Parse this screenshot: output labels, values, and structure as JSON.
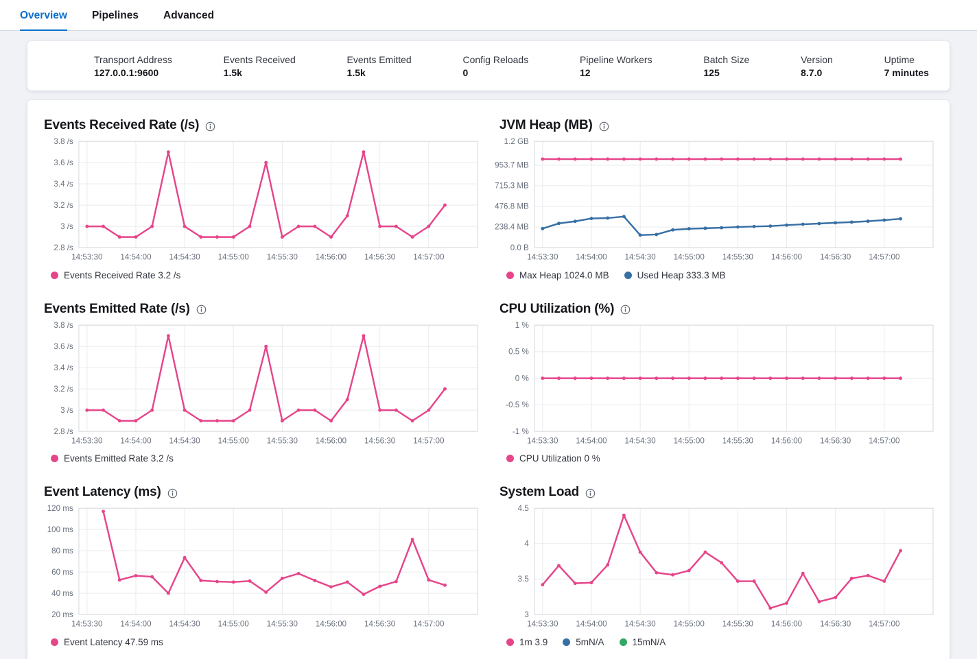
{
  "tabs": [
    {
      "label": "Overview",
      "active": true
    },
    {
      "label": "Pipelines",
      "active": false
    },
    {
      "label": "Advanced",
      "active": false
    }
  ],
  "stats": {
    "items": [
      {
        "label": "Transport Address",
        "value": "127.0.0.1:9600"
      },
      {
        "label": "Events Received",
        "value": "1.5k"
      },
      {
        "label": "Events Emitted",
        "value": "1.5k"
      },
      {
        "label": "Config Reloads",
        "value": "0"
      },
      {
        "label": "Pipeline Workers",
        "value": "12"
      },
      {
        "label": "Batch Size",
        "value": "125"
      },
      {
        "label": "Version",
        "value": "8.7.0"
      },
      {
        "label": "Uptime",
        "value": "7 minutes"
      }
    ]
  },
  "colors": {
    "tab_active": "#0b6fcb",
    "pink": "#e6458a",
    "blue": "#386fa4",
    "green": "#31a863"
  },
  "chart_data": [
    {
      "type": "line",
      "title": "Events Received Rate (/s)",
      "x": [
        "14:53:30",
        "14:53:40",
        "14:53:50",
        "14:54:00",
        "14:54:10",
        "14:54:20",
        "14:54:30",
        "14:54:40",
        "14:54:50",
        "14:55:00",
        "14:55:10",
        "14:55:20",
        "14:55:30",
        "14:55:40",
        "14:55:50",
        "14:56:00",
        "14:56:10",
        "14:56:20",
        "14:56:30",
        "14:56:40",
        "14:56:50",
        "14:57:00",
        "14:57:10"
      ],
      "x_tick_labels": [
        "14:53:30",
        "14:54:00",
        "14:54:30",
        "14:55:00",
        "14:55:30",
        "14:56:00",
        "14:56:30",
        "14:57:00"
      ],
      "ylim": [
        2.8,
        3.8
      ],
      "y_ticks": [
        {
          "label": "3.8 /s",
          "value": 3.8
        },
        {
          "label": "3.6 /s",
          "value": 3.6
        },
        {
          "label": "3.4 /s",
          "value": 3.4
        },
        {
          "label": "3.2 /s",
          "value": 3.2
        },
        {
          "label": "3 /s",
          "value": 3.0
        },
        {
          "label": "2.8 /s",
          "value": 2.8
        }
      ],
      "series": [
        {
          "name": "Events Received Rate",
          "color": "#e6458a",
          "values": [
            3,
            3,
            2.9,
            2.9,
            3,
            3.7,
            3,
            2.9,
            2.9,
            2.9,
            3,
            3.6,
            2.9,
            3,
            3,
            2.9,
            3.1,
            3.7,
            3,
            3,
            2.9,
            3,
            3.2
          ]
        }
      ],
      "legend": [
        {
          "text": "Events Received Rate 3.2 /s",
          "color": "#e6458a"
        }
      ]
    },
    {
      "type": "line",
      "title": "JVM Heap (MB)",
      "x": [
        "14:53:30",
        "14:53:40",
        "14:53:50",
        "14:54:00",
        "14:54:10",
        "14:54:20",
        "14:54:30",
        "14:54:40",
        "14:54:50",
        "14:55:00",
        "14:55:10",
        "14:55:20",
        "14:55:30",
        "14:55:40",
        "14:55:50",
        "14:56:00",
        "14:56:10",
        "14:56:20",
        "14:56:30",
        "14:56:40",
        "14:56:50",
        "14:57:00",
        "14:57:10"
      ],
      "x_tick_labels": [
        "14:53:30",
        "14:54:00",
        "14:54:30",
        "14:55:00",
        "14:55:30",
        "14:56:00",
        "14:56:30",
        "14:57:00"
      ],
      "ylim": [
        0,
        1228.8
      ],
      "y_ticks": [
        {
          "label": "1.2 GB",
          "value": 1228.8
        },
        {
          "label": "953.7 MB",
          "value": 953.7
        },
        {
          "label": "715.3 MB",
          "value": 715.3
        },
        {
          "label": "476.8 MB",
          "value": 476.8
        },
        {
          "label": "238.4 MB",
          "value": 238.4
        },
        {
          "label": "0.0 B",
          "value": 0
        }
      ],
      "series": [
        {
          "name": "Max Heap",
          "color": "#e6458a",
          "values": [
            1024,
            1024,
            1024,
            1024,
            1024,
            1024,
            1024,
            1024,
            1024,
            1024,
            1024,
            1024,
            1024,
            1024,
            1024,
            1024,
            1024,
            1024,
            1024,
            1024,
            1024,
            1024,
            1024
          ]
        },
        {
          "name": "Used Heap",
          "color": "#386fa4",
          "values": [
            220,
            280,
            304,
            337,
            342,
            359,
            145,
            152,
            205,
            218,
            224,
            230,
            238,
            244,
            249,
            260,
            270,
            278,
            287,
            295,
            305,
            318,
            333.3
          ]
        }
      ],
      "legend": [
        {
          "text": "Max Heap 1024.0 MB",
          "color": "#e6458a"
        },
        {
          "text": "Used Heap 333.3 MB",
          "color": "#386fa4"
        }
      ]
    },
    {
      "type": "line",
      "title": "Events Emitted Rate (/s)",
      "x": [
        "14:53:30",
        "14:53:40",
        "14:53:50",
        "14:54:00",
        "14:54:10",
        "14:54:20",
        "14:54:30",
        "14:54:40",
        "14:54:50",
        "14:55:00",
        "14:55:10",
        "14:55:20",
        "14:55:30",
        "14:55:40",
        "14:55:50",
        "14:56:00",
        "14:56:10",
        "14:56:20",
        "14:56:30",
        "14:56:40",
        "14:56:50",
        "14:57:00",
        "14:57:10"
      ],
      "x_tick_labels": [
        "14:53:30",
        "14:54:00",
        "14:54:30",
        "14:55:00",
        "14:55:30",
        "14:56:00",
        "14:56:30",
        "14:57:00"
      ],
      "ylim": [
        2.8,
        3.8
      ],
      "y_ticks": [
        {
          "label": "3.8 /s",
          "value": 3.8
        },
        {
          "label": "3.6 /s",
          "value": 3.6
        },
        {
          "label": "3.4 /s",
          "value": 3.4
        },
        {
          "label": "3.2 /s",
          "value": 3.2
        },
        {
          "label": "3 /s",
          "value": 3.0
        },
        {
          "label": "2.8 /s",
          "value": 2.8
        }
      ],
      "series": [
        {
          "name": "Events Emitted Rate",
          "color": "#e6458a",
          "values": [
            3,
            3,
            2.9,
            2.9,
            3,
            3.7,
            3,
            2.9,
            2.9,
            2.9,
            3,
            3.6,
            2.9,
            3,
            3,
            2.9,
            3.1,
            3.7,
            3,
            3,
            2.9,
            3,
            3.2
          ]
        }
      ],
      "legend": [
        {
          "text": "Events Emitted Rate 3.2 /s",
          "color": "#e6458a"
        }
      ]
    },
    {
      "type": "line",
      "title": "CPU Utilization (%)",
      "x": [
        "14:53:30",
        "14:53:40",
        "14:53:50",
        "14:54:00",
        "14:54:10",
        "14:54:20",
        "14:54:30",
        "14:54:40",
        "14:54:50",
        "14:55:00",
        "14:55:10",
        "14:55:20",
        "14:55:30",
        "14:55:40",
        "14:55:50",
        "14:56:00",
        "14:56:10",
        "14:56:20",
        "14:56:30",
        "14:56:40",
        "14:56:50",
        "14:57:00",
        "14:57:10"
      ],
      "x_tick_labels": [
        "14:53:30",
        "14:54:00",
        "14:54:30",
        "14:55:00",
        "14:55:30",
        "14:56:00",
        "14:56:30",
        "14:57:00"
      ],
      "ylim": [
        -1,
        1
      ],
      "y_ticks": [
        {
          "label": "1 %",
          "value": 1
        },
        {
          "label": "0.5 %",
          "value": 0.5
        },
        {
          "label": "0 %",
          "value": 0
        },
        {
          "label": "-0.5 %",
          "value": -0.5
        },
        {
          "label": "-1 %",
          "value": -1
        }
      ],
      "series": [
        {
          "name": "CPU Utilization",
          "color": "#e6458a",
          "values": [
            0,
            0,
            0,
            0,
            0,
            0,
            0,
            0,
            0,
            0,
            0,
            0,
            0,
            0,
            0,
            0,
            0,
            0,
            0,
            0,
            0,
            0,
            0
          ]
        }
      ],
      "legend": [
        {
          "text": "CPU Utilization 0 %",
          "color": "#e6458a"
        }
      ]
    },
    {
      "type": "line",
      "title": "Event Latency (ms)",
      "x": [
        "14:53:30",
        "14:53:40",
        "14:53:50",
        "14:54:00",
        "14:54:10",
        "14:54:20",
        "14:54:30",
        "14:54:40",
        "14:54:50",
        "14:55:00",
        "14:55:10",
        "14:55:20",
        "14:55:30",
        "14:55:40",
        "14:55:50",
        "14:56:00",
        "14:56:10",
        "14:56:20",
        "14:56:30",
        "14:56:40",
        "14:56:50",
        "14:57:00",
        "14:57:10"
      ],
      "x_tick_labels": [
        "14:53:30",
        "14:54:00",
        "14:54:30",
        "14:55:00",
        "14:55:30",
        "14:56:00",
        "14:56:30",
        "14:57:00"
      ],
      "ylim": [
        20,
        120
      ],
      "y_ticks": [
        {
          "label": "120 ms",
          "value": 120
        },
        {
          "label": "100 ms",
          "value": 100
        },
        {
          "label": "80 ms",
          "value": 80
        },
        {
          "label": "60 ms",
          "value": 60
        },
        {
          "label": "40 ms",
          "value": 40
        },
        {
          "label": "20 ms",
          "value": 20
        }
      ],
      "series": [
        {
          "name": "Event Latency",
          "color": "#e6458a",
          "values": [
            null,
            117,
            52.5,
            56.5,
            55.5,
            40,
            73.5,
            52,
            51,
            50.5,
            51.5,
            41,
            54,
            58.5,
            52,
            46,
            50.5,
            39,
            46.5,
            51,
            90.5,
            52.5,
            47.59
          ]
        }
      ],
      "legend": [
        {
          "text": "Event Latency 47.59 ms",
          "color": "#e6458a"
        }
      ]
    },
    {
      "type": "line",
      "title": "System Load",
      "x": [
        "14:53:30",
        "14:53:40",
        "14:53:50",
        "14:54:00",
        "14:54:10",
        "14:54:20",
        "14:54:30",
        "14:54:40",
        "14:54:50",
        "14:55:00",
        "14:55:10",
        "14:55:20",
        "14:55:30",
        "14:55:40",
        "14:55:50",
        "14:56:00",
        "14:56:10",
        "14:56:20",
        "14:56:30",
        "14:56:40",
        "14:56:50",
        "14:57:00",
        "14:57:10"
      ],
      "x_tick_labels": [
        "14:53:30",
        "14:54:00",
        "14:54:30",
        "14:55:00",
        "14:55:30",
        "14:56:00",
        "14:56:30",
        "14:57:00"
      ],
      "ylim": [
        3,
        4.5
      ],
      "y_ticks": [
        {
          "label": "4.5",
          "value": 4.5
        },
        {
          "label": "4",
          "value": 4
        },
        {
          "label": "3.5",
          "value": 3.5
        },
        {
          "label": "3",
          "value": 3
        }
      ],
      "series": [
        {
          "name": "1m",
          "color": "#e6458a",
          "values": [
            3.42,
            3.69,
            3.44,
            3.45,
            3.7,
            4.4,
            3.88,
            3.59,
            3.56,
            3.62,
            3.88,
            3.73,
            3.47,
            3.47,
            3.09,
            3.16,
            3.58,
            3.18,
            3.24,
            3.51,
            3.55,
            3.47,
            3.9
          ]
        }
      ],
      "legend": [
        {
          "text": "1m 3.9",
          "color": "#e6458a"
        },
        {
          "text": "5mN/A",
          "color": "#386fa4"
        },
        {
          "text": "15mN/A",
          "color": "#31a863"
        }
      ]
    }
  ]
}
